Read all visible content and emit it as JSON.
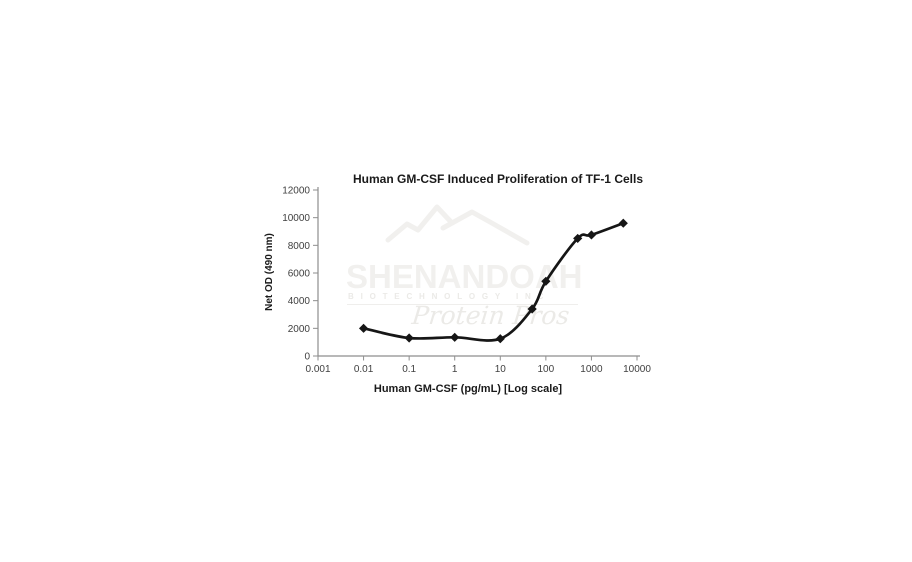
{
  "page": {
    "background": "#ffffff"
  },
  "chart_data": {
    "type": "line",
    "title": "Human GM-CSF Induced Proliferation of TF-1 Cells",
    "xlabel": "Human GM-CSF (pg/mL) [Log scale]",
    "ylabel": "Net OD (490 nm)",
    "x_scale": "log",
    "xlim": [
      0.001,
      10000
    ],
    "ylim": [
      0,
      12000
    ],
    "x_ticks": [
      "0.001",
      "0.01",
      "0.1",
      "1",
      "10",
      "100",
      "1000",
      "10000"
    ],
    "y_ticks": [
      "0",
      "2000",
      "4000",
      "6000",
      "8000",
      "10000",
      "12000"
    ],
    "grid": false,
    "legend": null,
    "marker": "diamond",
    "line_color": "#161616",
    "axis_color": "#8e8e8e",
    "tick_label_color": "#404040",
    "title_color": "#1a1a1a",
    "series": [
      {
        "name": "Net OD (490 nm)",
        "x": [
          0.01,
          0.1,
          1,
          10,
          50,
          100,
          500,
          1000,
          5000
        ],
        "y": [
          2000,
          1300,
          1350,
          1250,
          3400,
          5400,
          8500,
          8750,
          9600
        ]
      }
    ]
  },
  "watermark": {
    "brand": "SHENANDOAH",
    "subtitle": "BIOTECHNOLOGY INC",
    "tagline": "Protein Pros",
    "brand_color": "#f1f0ee",
    "secondary_color": "#ebeae7"
  }
}
